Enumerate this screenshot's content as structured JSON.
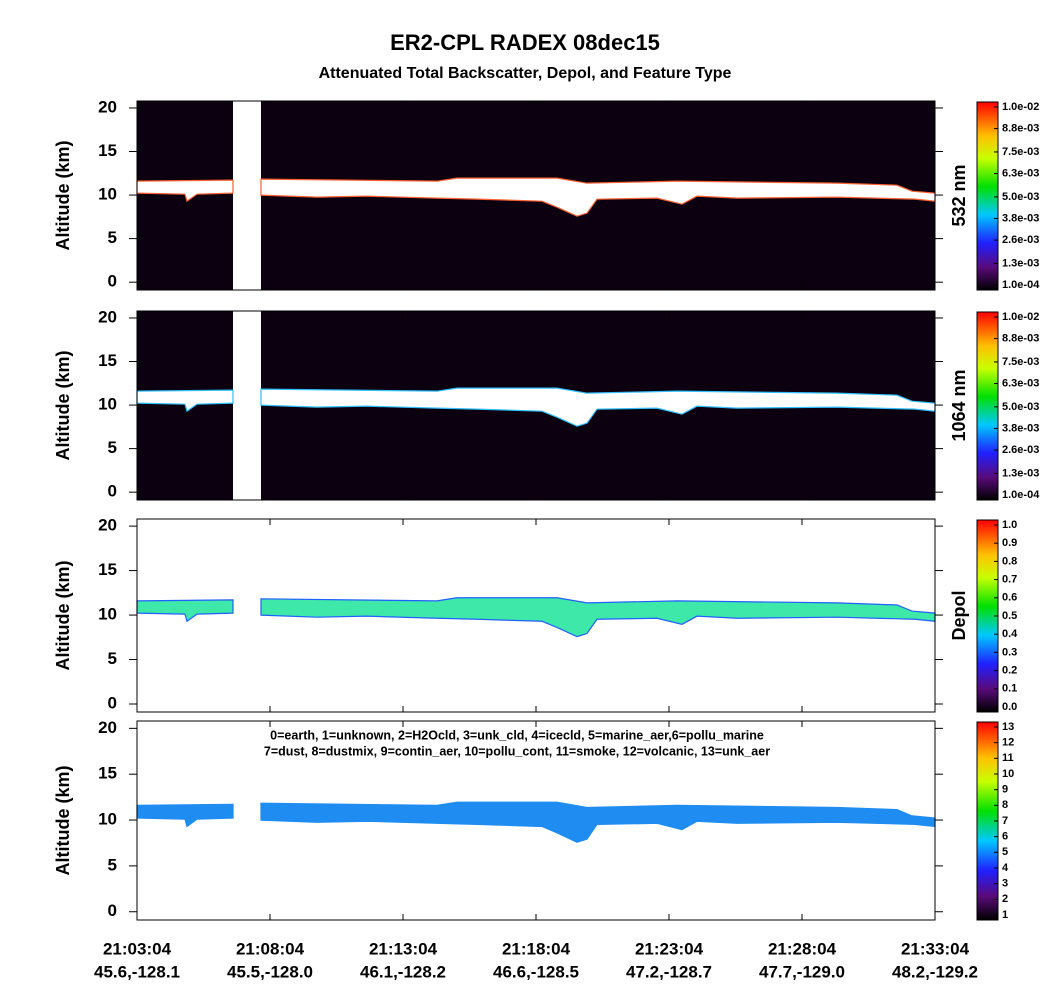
{
  "title": "ER2-CPL RADEX 08dec15",
  "subtitle": "Attenuated Total Backscatter, Depol, and Feature Type",
  "x_tick_labels": [
    {
      "time": "21:03:04",
      "location": "45.6,-128.1"
    },
    {
      "time": "21:08:04",
      "location": "45.5,-128.0"
    },
    {
      "time": "21:13:04",
      "location": "46.1,-128.2"
    },
    {
      "time": "21:18:04",
      "location": "46.6,-128.5"
    },
    {
      "time": "21:23:04",
      "location": "47.2,-128.7"
    },
    {
      "time": "21:28:04",
      "location": "47.7,-129.0"
    },
    {
      "time": "21:33:04",
      "location": "48.2,-129.2"
    }
  ],
  "chart_data": [
    {
      "type": "curtain",
      "ylabel": "Altitude (km)",
      "ylim": [
        -0.9,
        20.8
      ],
      "yticks": [
        0,
        5,
        10,
        15,
        20
      ],
      "background": "#0c0010",
      "colorbar": {
        "label": "532 nm",
        "lim": [
          0.0001,
          0.01
        ],
        "ticks": [
          {
            "value": 0.0001,
            "label": "1.0e-04"
          },
          {
            "value": 0.0013,
            "label": "1.3e-03"
          },
          {
            "value": 0.0026,
            "label": "2.6e-03"
          },
          {
            "value": 0.0038,
            "label": "3.8e-03"
          },
          {
            "value": 0.005,
            "label": "5.0e-03"
          },
          {
            "value": 0.0063,
            "label": "6.3e-03"
          },
          {
            "value": 0.0075,
            "label": "7.5e-03"
          },
          {
            "value": 0.0088,
            "label": "8.8e-03"
          },
          {
            "value": 0.01,
            "label": "1.0e-02"
          }
        ]
      }
    },
    {
      "type": "curtain",
      "ylabel": "Altitude (km)",
      "ylim": [
        -0.9,
        20.8
      ],
      "yticks": [
        0,
        5,
        10,
        15,
        20
      ],
      "background": "#0c0010",
      "colorbar": {
        "label": "1064 nm",
        "lim": [
          0.0001,
          0.01
        ],
        "ticks": [
          {
            "value": 0.0001,
            "label": "1.0e-04"
          },
          {
            "value": 0.0013,
            "label": "1.3e-03"
          },
          {
            "value": 0.0026,
            "label": "2.6e-03"
          },
          {
            "value": 0.0038,
            "label": "3.8e-03"
          },
          {
            "value": 0.005,
            "label": "5.0e-03"
          },
          {
            "value": 0.0063,
            "label": "6.3e-03"
          },
          {
            "value": 0.0075,
            "label": "7.5e-03"
          },
          {
            "value": 0.0088,
            "label": "8.8e-03"
          },
          {
            "value": 0.01,
            "label": "1.0e-02"
          }
        ]
      }
    },
    {
      "type": "curtain",
      "ylabel": "Altitude (km)",
      "ylim": [
        -0.9,
        20.8
      ],
      "yticks": [
        0,
        5,
        10,
        15,
        20
      ],
      "background": "#ffffff",
      "colorbar": {
        "label": "Depol",
        "lim": [
          0,
          1
        ],
        "ticks": [
          {
            "value": 0,
            "label": "0.0"
          },
          {
            "value": 0.1,
            "label": "0.1"
          },
          {
            "value": 0.2,
            "label": "0.2"
          },
          {
            "value": 0.3,
            "label": "0.3"
          },
          {
            "value": 0.4,
            "label": "0.4"
          },
          {
            "value": 0.5,
            "label": "0.5"
          },
          {
            "value": 0.6,
            "label": "0.6"
          },
          {
            "value": 0.7,
            "label": "0.7"
          },
          {
            "value": 0.8,
            "label": "0.8"
          },
          {
            "value": 0.9,
            "label": "0.9"
          },
          {
            "value": 1,
            "label": "1.0"
          }
        ]
      }
    },
    {
      "type": "curtain",
      "ylabel": "Altitude (km)",
      "ylim": [
        -0.9,
        20.8
      ],
      "yticks": [
        0,
        5,
        10,
        15,
        20
      ],
      "background": "#ffffff",
      "annotation": [
        "0=earth, 1=unknown, 2=H2Ocld, 3=unk_cld, 4=icecld, 5=marine_aer,6=pollu_marine",
        "7=dust, 8=dustmix, 9=contin_aer, 10=pollu_cont, 11=smoke, 12=volcanic, 13=unk_aer"
      ],
      "colorbar": {
        "lim": [
          1,
          13
        ],
        "ticks": [
          1,
          2,
          3,
          4,
          5,
          6,
          7,
          8,
          9,
          10,
          11,
          12,
          13
        ]
      }
    }
  ]
}
